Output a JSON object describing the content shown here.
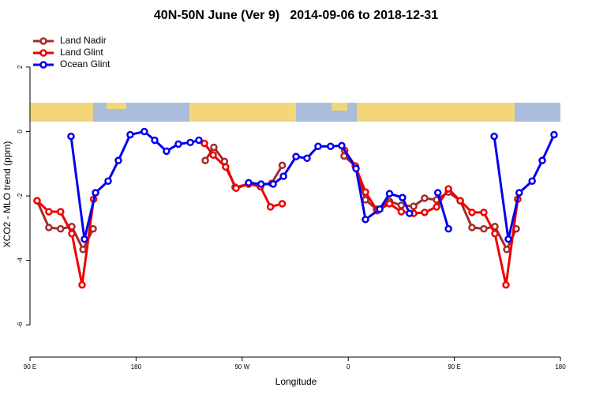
{
  "chart_data": {
    "type": "line",
    "title": "40N-50N June (Ver 9)   2014-09-06 to 2018-12-31",
    "x_label": "Longitude",
    "y_label": "XCO2 - MLO trend (ppm)",
    "xlim": [
      90,
      540
    ],
    "ylim": [
      -7,
      3.1
    ],
    "xticks": [
      {
        "value": 90,
        "label": "90 E"
      },
      180,
      {
        "value": 270,
        "label": "90 W"
      },
      {
        "value": 360,
        "label": "0"
      },
      {
        "value": 450,
        "label": "90 E"
      },
      {
        "value": 540,
        "label": "180"
      }
    ],
    "yticks": [
      -6,
      -4,
      -2,
      0,
      2
    ],
    "legend": "top-left",
    "series": [
      {
        "name": "Land Nadir",
        "color": "#a52a2a",
        "x": [
          96,
          106,
          116,
          125.5,
          135,
          143.6,
          null,
          238.7,
          246,
          255,
          264,
          275.5,
          285.5,
          295,
          304,
          null,
          356.5,
          366,
          374.6,
          384,
          395,
          405,
          415.5,
          424.8,
          434.9,
          445,
          455,
          465,
          475,
          484.4,
          494.5,
          502.5
        ],
        "values": [
          -2.15,
          -2.98,
          -3.02,
          -2.95,
          -3.66,
          -3.02,
          null,
          -0.9,
          -0.49,
          -0.93,
          -1.73,
          -1.63,
          -1.66,
          -1.61,
          -1.05,
          null,
          -0.76,
          -1.07,
          -2.12,
          -2.41,
          -2.17,
          -2.29,
          -2.32,
          -2.07,
          -2.12,
          -1.88,
          -2.15,
          -2.98,
          -3.02,
          -2.95,
          -3.66,
          -3.02
        ]
      },
      {
        "name": "Land Glint",
        "color": "#ee0000",
        "x": [
          96,
          106,
          116,
          125.5,
          134.2,
          144,
          null,
          238,
          245.4,
          256,
          264.8,
          275.5,
          285.5,
          294,
          304,
          null,
          357,
          366,
          374.6,
          384.6,
          395,
          405,
          415.5,
          424.8,
          434.9,
          445,
          455,
          465,
          475,
          484.4,
          493.8,
          503.8
        ],
        "values": [
          -2.15,
          -2.49,
          -2.49,
          -3.17,
          -4.76,
          -2.1,
          null,
          -0.37,
          -0.73,
          -1.1,
          -1.76,
          -1.63,
          -1.71,
          -2.34,
          -2.24,
          null,
          -0.59,
          -1.07,
          -1.88,
          -2.46,
          -2.24,
          -2.49,
          -2.54,
          -2.51,
          -2.34,
          -1.78,
          -2.15,
          -2.51,
          -2.51,
          -3.17,
          -4.76,
          -2.1
        ]
      },
      {
        "name": "Ocean Glint",
        "color": "#0000ee",
        "x": [
          124.8,
          136.2,
          145.6,
          156.3,
          165,
          175,
          187,
          195.8,
          205.8,
          215.9,
          226,
          233.3,
          null,
          275.5,
          286,
          296.3,
          305,
          315.7,
          325,
          334.4,
          345,
          354.5,
          366.6,
          374.6,
          386.7,
          395,
          406,
          412,
          null,
          436,
          445,
          null,
          483.8,
          495.8,
          505,
          516,
          524.6,
          534.6
        ],
        "values": [
          -0.15,
          -3.34,
          -1.9,
          -1.54,
          -0.9,
          -0.1,
          0,
          -0.27,
          -0.61,
          -0.39,
          -0.34,
          -0.27,
          null,
          -1.59,
          -1.63,
          -1.63,
          -1.39,
          -0.78,
          -0.83,
          -0.46,
          -0.46,
          -0.44,
          -1.15,
          -2.73,
          -2.41,
          -1.93,
          -2.05,
          -2.54,
          null,
          -1.9,
          -3.02,
          null,
          -0.15,
          -3.34,
          -1.9,
          -1.54,
          -0.9,
          -0.1
        ]
      }
    ]
  }
}
